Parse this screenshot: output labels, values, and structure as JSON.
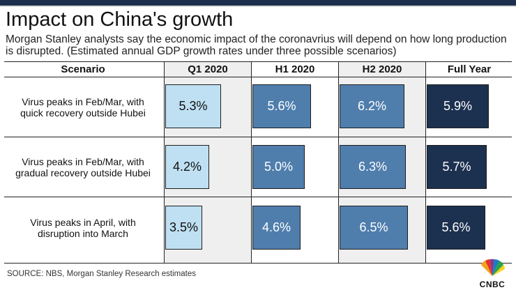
{
  "title": "Impact on China's growth",
  "subtitle": "Morgan Stanley analysts say the economic impact of the coronavrius will depend on how long production is disrupted. (Estimated annual GDP growth rates under three possible scenarios)",
  "source": "SOURCE: NBS, Morgan Stanley Research estimates",
  "brand": "CNBC",
  "colors": {
    "q1": "#bfe0f3",
    "mid": "#4f7ead",
    "full": "#1c3150",
    "shade": "#efefef",
    "topbar": "#1c2f4d"
  },
  "chart_data": {
    "type": "table",
    "title": "Impact on China's growth",
    "column_header": "Scenario",
    "columns": [
      "Q1 2020",
      "H1 2020",
      "H2 2020",
      "Full Year"
    ],
    "scale_max": 6.5,
    "rows": [
      {
        "scenario_lines": [
          "Virus peaks in Feb/Mar, with",
          "quick recovery outside Hubei"
        ],
        "values": [
          5.3,
          5.6,
          6.2,
          5.9
        ],
        "labels": [
          "5.3%",
          "5.6%",
          "6.2%",
          "5.9%"
        ]
      },
      {
        "scenario_lines": [
          "Virus peaks in Feb/Mar, with",
          "gradual recovery outside Hubei"
        ],
        "values": [
          4.2,
          5.0,
          6.3,
          5.7
        ],
        "labels": [
          "4.2%",
          "5.0%",
          "6.3%",
          "5.7%"
        ]
      },
      {
        "scenario_lines": [
          "Virus peaks in April, with",
          "disruption into March"
        ],
        "values": [
          3.5,
          4.6,
          6.5,
          5.6
        ],
        "labels": [
          "3.5%",
          "4.6%",
          "6.5%",
          "5.6%"
        ]
      }
    ]
  }
}
